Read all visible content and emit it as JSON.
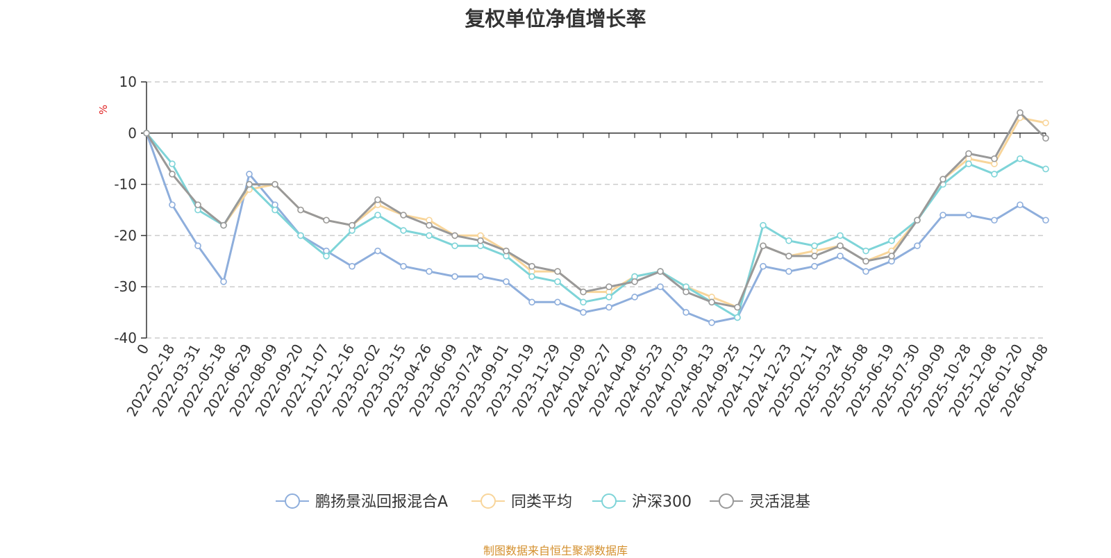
{
  "chart_data": {
    "type": "line",
    "title": "复权单位净值增长率",
    "ylabel": "%",
    "ylim": [
      -40,
      10
    ],
    "yticks": [
      10,
      0,
      -10,
      -20,
      -30,
      -40
    ],
    "grid": true,
    "legend_position": "bottom",
    "x": [
      "0",
      "2022-02-18",
      "2022-03-31",
      "2022-05-18",
      "2022-06-29",
      "2022-08-09",
      "2022-09-20",
      "2022-11-07",
      "2022-12-16",
      "2023-02-02",
      "2023-03-15",
      "2023-04-26",
      "2023-06-09",
      "2023-07-24",
      "2023-09-01",
      "2023-10-19",
      "2023-11-29",
      "2024-01-09",
      "2024-02-27",
      "2024-04-09",
      "2024-05-23",
      "2024-07-03",
      "2024-08-13",
      "2024-09-25",
      "2024-11-12",
      "2024-12-23",
      "2025-02-11",
      "2025-03-24",
      "2025-05-08",
      "2025-06-19",
      "2025-07-30",
      "2025-09-09",
      "2025-10-28",
      "2025-12-08",
      "2026-01-20",
      "2026-04-08"
    ],
    "series": [
      {
        "name": "鹏扬景泓回报混合A",
        "color": "#8eaedc",
        "values": [
          0,
          -14,
          -22,
          -29,
          -8,
          -14,
          -20,
          -23,
          -26,
          -23,
          -26,
          -27,
          -28,
          -28,
          -29,
          -33,
          -33,
          -35,
          -34,
          -32,
          -30,
          -35,
          -37,
          -36,
          -26,
          -27,
          -26,
          -24,
          -27,
          -25,
          -22,
          -16,
          -16,
          -17,
          -14,
          -17
        ]
      },
      {
        "name": "同类平均",
        "color": "#f8d59a",
        "values": [
          0,
          -8,
          -14,
          -18,
          -11,
          -10,
          -15,
          -17,
          -18,
          -14,
          -16,
          -17,
          -20,
          -20,
          -23,
          -27,
          -27,
          -31,
          -31,
          -28,
          -27,
          -30,
          -32,
          -34,
          -22,
          -24,
          -23,
          -22,
          -25,
          -23,
          -17,
          -9,
          -5,
          -6,
          3,
          2
        ]
      },
      {
        "name": "沪深300",
        "color": "#7ed4d8",
        "values": [
          0,
          -6,
          -15,
          -18,
          -10,
          -15,
          -20,
          -24,
          -19,
          -16,
          -19,
          -20,
          -22,
          -22,
          -24,
          -28,
          -29,
          -33,
          -32,
          -28,
          -27,
          -30,
          -33,
          -36,
          -18,
          -21,
          -22,
          -20,
          -23,
          -21,
          -17,
          -10,
          -6,
          -8,
          -5,
          -7
        ]
      },
      {
        "name": "灵活混基",
        "color": "#999999",
        "values": [
          0,
          -8,
          -14,
          -18,
          -10,
          -10,
          -15,
          -17,
          -18,
          -13,
          -16,
          -18,
          -20,
          -21,
          -23,
          -26,
          -27,
          -31,
          -30,
          -29,
          -27,
          -31,
          -33,
          -34,
          -22,
          -24,
          -24,
          -22,
          -25,
          -24,
          -17,
          -9,
          -4,
          -5,
          4,
          -1
        ]
      }
    ]
  },
  "footer": {
    "source": "制图数据来自恒生聚源数据库"
  }
}
